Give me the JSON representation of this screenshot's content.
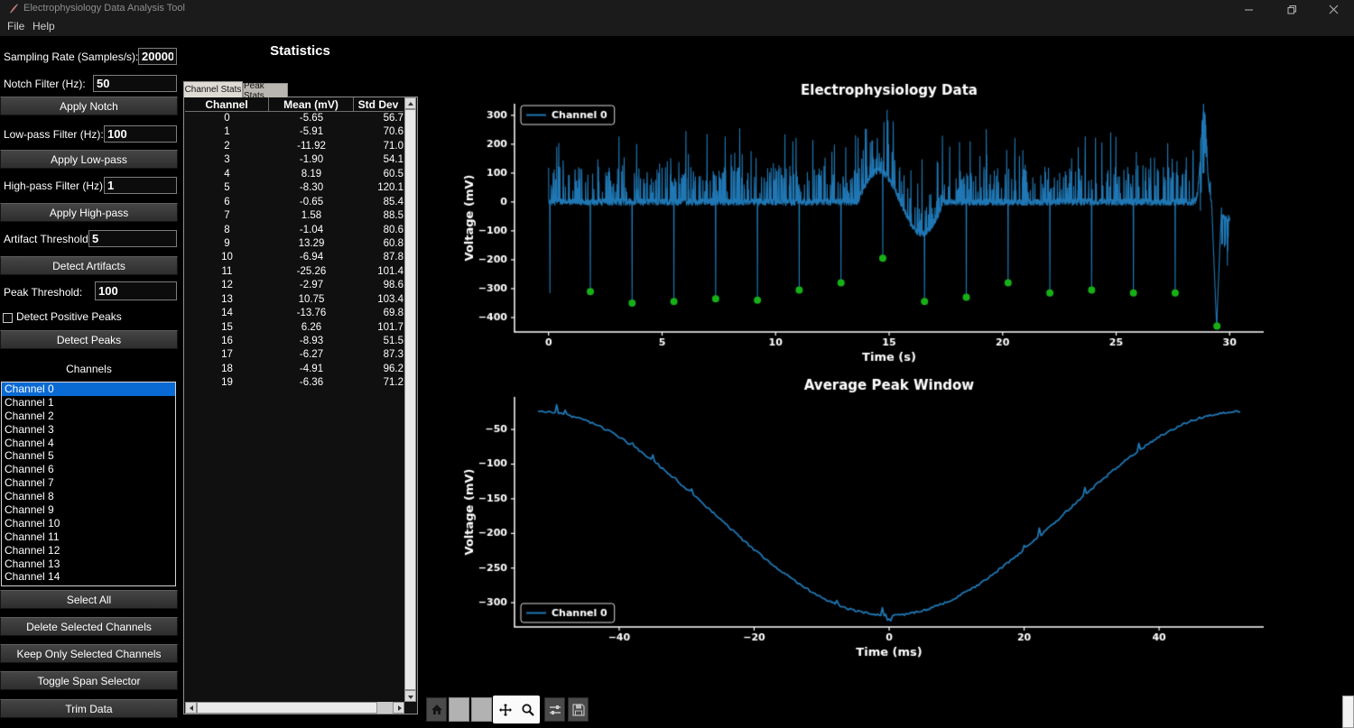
{
  "window": {
    "title": "Electrophysiology Data Analysis Tool",
    "controls": {
      "minimize": "minimize",
      "maximize": "maximize",
      "close": "close"
    }
  },
  "menu": {
    "items": [
      {
        "label": "File"
      },
      {
        "label": "Help"
      }
    ]
  },
  "sidebar": {
    "sampling_rate": {
      "label": "Sampling Rate (Samples/s):",
      "value": "20000"
    },
    "notch": {
      "label": "Notch Filter (Hz):",
      "value": "50"
    },
    "apply_notch_label": "Apply Notch",
    "lowpass": {
      "label": "Low-pass Filter (Hz):",
      "value": "100"
    },
    "apply_lowpass_label": "Apply Low-pass",
    "highpass": {
      "label": "High-pass Filter (Hz):",
      "value": "1"
    },
    "apply_highpass_label": "Apply High-pass",
    "artifact": {
      "label": "Artifact Threshold:",
      "value": "5"
    },
    "detect_artifacts_label": "Detect Artifacts",
    "peak": {
      "label": "Peak Threshold:",
      "value": "100"
    },
    "detect_positive_label": "Detect Positive Peaks",
    "detect_positive_checked": false,
    "detect_peaks_label": "Detect Peaks",
    "channels_label": "Channels",
    "channels": [
      "Channel 0",
      "Channel 1",
      "Channel 2",
      "Channel 3",
      "Channel 4",
      "Channel 5",
      "Channel 6",
      "Channel 7",
      "Channel 8",
      "Channel 9",
      "Channel 10",
      "Channel 11",
      "Channel 12",
      "Channel 13",
      "Channel 14"
    ],
    "selected_channel": "Channel 0",
    "buttons": [
      "Select All",
      "Delete Selected Channels",
      "Keep Only Selected Channels",
      "Toggle Span Selector",
      "Trim Data"
    ]
  },
  "statistics": {
    "title": "Statistics",
    "tabs": [
      "Channel Stats",
      "Peak Stats"
    ],
    "active_tab": "Channel Stats",
    "table": {
      "columns": [
        "Channel",
        "Mean (mV)",
        "Std Dev"
      ],
      "rows": [
        [
          "0",
          "-5.65",
          "56.7"
        ],
        [
          "1",
          "-5.91",
          "70.6"
        ],
        [
          "2",
          "-11.92",
          "71.0"
        ],
        [
          "3",
          "-1.90",
          "54.1"
        ],
        [
          "4",
          "8.19",
          "60.5"
        ],
        [
          "5",
          "-8.30",
          "120.1"
        ],
        [
          "6",
          "-0.65",
          "85.4"
        ],
        [
          "7",
          "1.58",
          "88.5"
        ],
        [
          "8",
          "-1.04",
          "80.6"
        ],
        [
          "9",
          "13.29",
          "60.8"
        ],
        [
          "10",
          "-6.94",
          "87.8"
        ],
        [
          "11",
          "-25.26",
          "101.4"
        ],
        [
          "12",
          "-2.97",
          "98.6"
        ],
        [
          "13",
          "10.75",
          "103.4"
        ],
        [
          "14",
          "-13.76",
          "69.8"
        ],
        [
          "15",
          "6.26",
          "101.7"
        ],
        [
          "16",
          "-8.93",
          "51.5"
        ],
        [
          "17",
          "-6.27",
          "87.3"
        ],
        [
          "18",
          "-4.91",
          "96.2"
        ],
        [
          "19",
          "-6.36",
          "71.2"
        ]
      ]
    }
  },
  "toolbar": {
    "buttons": [
      {
        "name": "home"
      },
      {
        "name": "back"
      },
      {
        "name": "forward"
      },
      {
        "name": "pan",
        "active": true
      },
      {
        "name": "zoom",
        "active": true
      },
      {
        "name": "configure-subplots"
      },
      {
        "name": "save"
      }
    ]
  },
  "chart_data": [
    {
      "type": "line",
      "title": "Electrophysiology Data",
      "xlabel": "Time (s)",
      "ylabel": "Voltage (mV)",
      "xlim": [
        -1.5,
        31.5
      ],
      "ylim": [
        -450,
        340
      ],
      "xticks": [
        0,
        5,
        10,
        15,
        20,
        25,
        30
      ],
      "yticks": [
        300,
        200,
        100,
        0,
        -100,
        -200,
        -300,
        -400
      ],
      "grid": false,
      "legend": {
        "position": "upper left"
      },
      "series": [
        {
          "name": "Channel 0",
          "color": "#1f77b4"
        }
      ],
      "signal": {
        "seed": 7,
        "duration": 30,
        "dt": 0.01,
        "baseline": 0,
        "noise": 12,
        "spike_p_tall": 0.025,
        "spike_tall_min": 120,
        "spike_tall_max": 255,
        "spike_p_mid": 0.15,
        "slow_wave": {
          "t0": 13.6,
          "t1": 17.4,
          "amp": 108
        },
        "final_rise": {
          "t": 28.85,
          "sigma": 0.18,
          "amp": 315
        },
        "plunge": {
          "t0": 29.2,
          "t1": 29.65,
          "depth": -430
        },
        "tail": {
          "t0": 29.65,
          "level": -55,
          "jitter": 12,
          "spike_p": 0.3,
          "spike_amp": 175
        },
        "extra_downspikes": [
          [
            0.06,
            -315
          ]
        ]
      },
      "detected_peaks": {
        "color": "#17b017",
        "marker": "o",
        "points": [
          [
            1.84,
            -310
          ],
          [
            3.68,
            -350
          ],
          [
            5.52,
            -345
          ],
          [
            7.36,
            -335
          ],
          [
            9.2,
            -340
          ],
          [
            11.04,
            -305
          ],
          [
            12.88,
            -280
          ],
          [
            14.72,
            -195
          ],
          [
            16.56,
            -345
          ],
          [
            18.4,
            -330
          ],
          [
            20.24,
            -280
          ],
          [
            22.08,
            -315
          ],
          [
            23.92,
            -305
          ],
          [
            25.76,
            -315
          ],
          [
            27.6,
            -315
          ],
          [
            29.44,
            -430
          ]
        ]
      }
    },
    {
      "type": "line",
      "title": "Average Peak Window",
      "xlabel": "Time (ms)",
      "ylabel": "Voltage (mV)",
      "xlim": [
        -55.5,
        55.5
      ],
      "ylim": [
        -335,
        -3
      ],
      "xticks": [
        -40,
        -20,
        0,
        20,
        40
      ],
      "yticks": [
        -50,
        -100,
        -150,
        -200,
        -250,
        -300
      ],
      "grid": false,
      "legend": {
        "position": "lower left"
      },
      "series": [
        {
          "name": "Channel 0",
          "color": "#1f77b4"
        }
      ],
      "curve": {
        "seed": 3,
        "halfwidth": 52,
        "edge": -24,
        "min": -318,
        "dx": 0.25,
        "noise": 1.6,
        "artifact_p": 0.022,
        "artifact_amp": 9,
        "notch": {
          "x": 0,
          "depth": 7
        }
      },
      "sampled_points": [
        [
          -50,
          -25
        ],
        [
          -45,
          -37
        ],
        [
          -40,
          -61
        ],
        [
          -35,
          -95
        ],
        [
          -30,
          -136
        ],
        [
          -25,
          -180
        ],
        [
          -20,
          -223
        ],
        [
          -15,
          -262
        ],
        [
          -10,
          -292
        ],
        [
          -5,
          -311
        ],
        [
          0,
          -318
        ],
        [
          5,
          -311
        ],
        [
          10,
          -292
        ],
        [
          15,
          -262
        ],
        [
          20,
          -223
        ],
        [
          25,
          -180
        ],
        [
          30,
          -136
        ],
        [
          35,
          -95
        ],
        [
          40,
          -61
        ],
        [
          45,
          -37
        ],
        [
          50,
          -25
        ]
      ]
    }
  ]
}
